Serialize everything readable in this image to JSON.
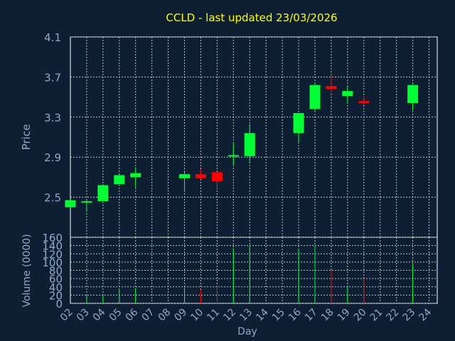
{
  "chart_data": {
    "type": "candlestick",
    "title": "CCLD - last updated 23/03/2026",
    "xlabel": "Day",
    "price_ylabel": "Price",
    "volume_ylabel": "Volume (0000)",
    "x_ticks": [
      "02",
      "03",
      "04",
      "05",
      "06",
      "07",
      "08",
      "09",
      "10",
      "11",
      "12",
      "13",
      "14",
      "15",
      "16",
      "17",
      "18",
      "19",
      "20",
      "21",
      "22",
      "23",
      "24"
    ],
    "price_ylim": [
      2.1,
      4.1
    ],
    "price_ticks": [
      "2.5",
      "2.9",
      "3.3",
      "3.7",
      "4.1"
    ],
    "volume_ylim": [
      0,
      160
    ],
    "volume_ticks": [
      "0",
      "20",
      "40",
      "60",
      "80",
      "100",
      "120",
      "140",
      "160"
    ],
    "grid": true,
    "colors": {
      "background": "#0f1f33",
      "up": "#00ff33",
      "down": "#ff0000",
      "grid": "#c0c0c0",
      "title": "#ffff00",
      "axis_text": "#8fa9c8"
    },
    "candles": [
      {
        "day": "02",
        "open": 2.4,
        "high": 2.47,
        "low": 2.4,
        "close": 2.47,
        "volume": 0
      },
      {
        "day": "03",
        "open": 2.45,
        "high": 2.47,
        "low": 2.36,
        "close": 2.46,
        "volume": 22
      },
      {
        "day": "04",
        "open": 2.46,
        "high": 2.63,
        "low": 2.46,
        "close": 2.62,
        "volume": 20
      },
      {
        "day": "05",
        "open": 2.63,
        "high": 2.73,
        "low": 2.63,
        "close": 2.72,
        "volume": 35
      },
      {
        "day": "06",
        "open": 2.7,
        "high": 2.8,
        "low": 2.6,
        "close": 2.74,
        "volume": 37
      },
      {
        "day": "09",
        "open": 2.69,
        "high": 2.76,
        "low": 2.55,
        "close": 2.73,
        "volume": 38
      },
      {
        "day": "10",
        "open": 2.73,
        "high": 2.78,
        "low": 2.68,
        "close": 2.69,
        "volume": 32
      },
      {
        "day": "11",
        "open": 2.75,
        "high": 2.75,
        "low": 2.59,
        "close": 2.66,
        "volume": 45
      },
      {
        "day": "12",
        "open": 2.91,
        "high": 3.04,
        "low": 2.82,
        "close": 2.92,
        "volume": 133
      },
      {
        "day": "13",
        "open": 2.91,
        "high": 3.23,
        "low": 2.84,
        "close": 3.14,
        "volume": 141
      },
      {
        "day": "16",
        "open": 3.14,
        "high": 3.34,
        "low": 3.05,
        "close": 3.34,
        "volume": 130
      },
      {
        "day": "17",
        "open": 3.38,
        "high": 3.64,
        "low": 3.36,
        "close": 3.62,
        "volume": 140
      },
      {
        "day": "18",
        "open": 3.61,
        "high": 3.71,
        "low": 3.55,
        "close": 3.58,
        "volume": 80
      },
      {
        "day": "19",
        "open": 3.51,
        "high": 3.61,
        "low": 3.44,
        "close": 3.56,
        "volume": 42
      },
      {
        "day": "20",
        "open": 3.46,
        "high": 3.51,
        "low": 3.42,
        "close": 3.44,
        "volume": 57
      },
      {
        "day": "23",
        "open": 3.44,
        "high": 3.63,
        "low": 3.37,
        "close": 3.62,
        "volume": 97
      }
    ]
  }
}
